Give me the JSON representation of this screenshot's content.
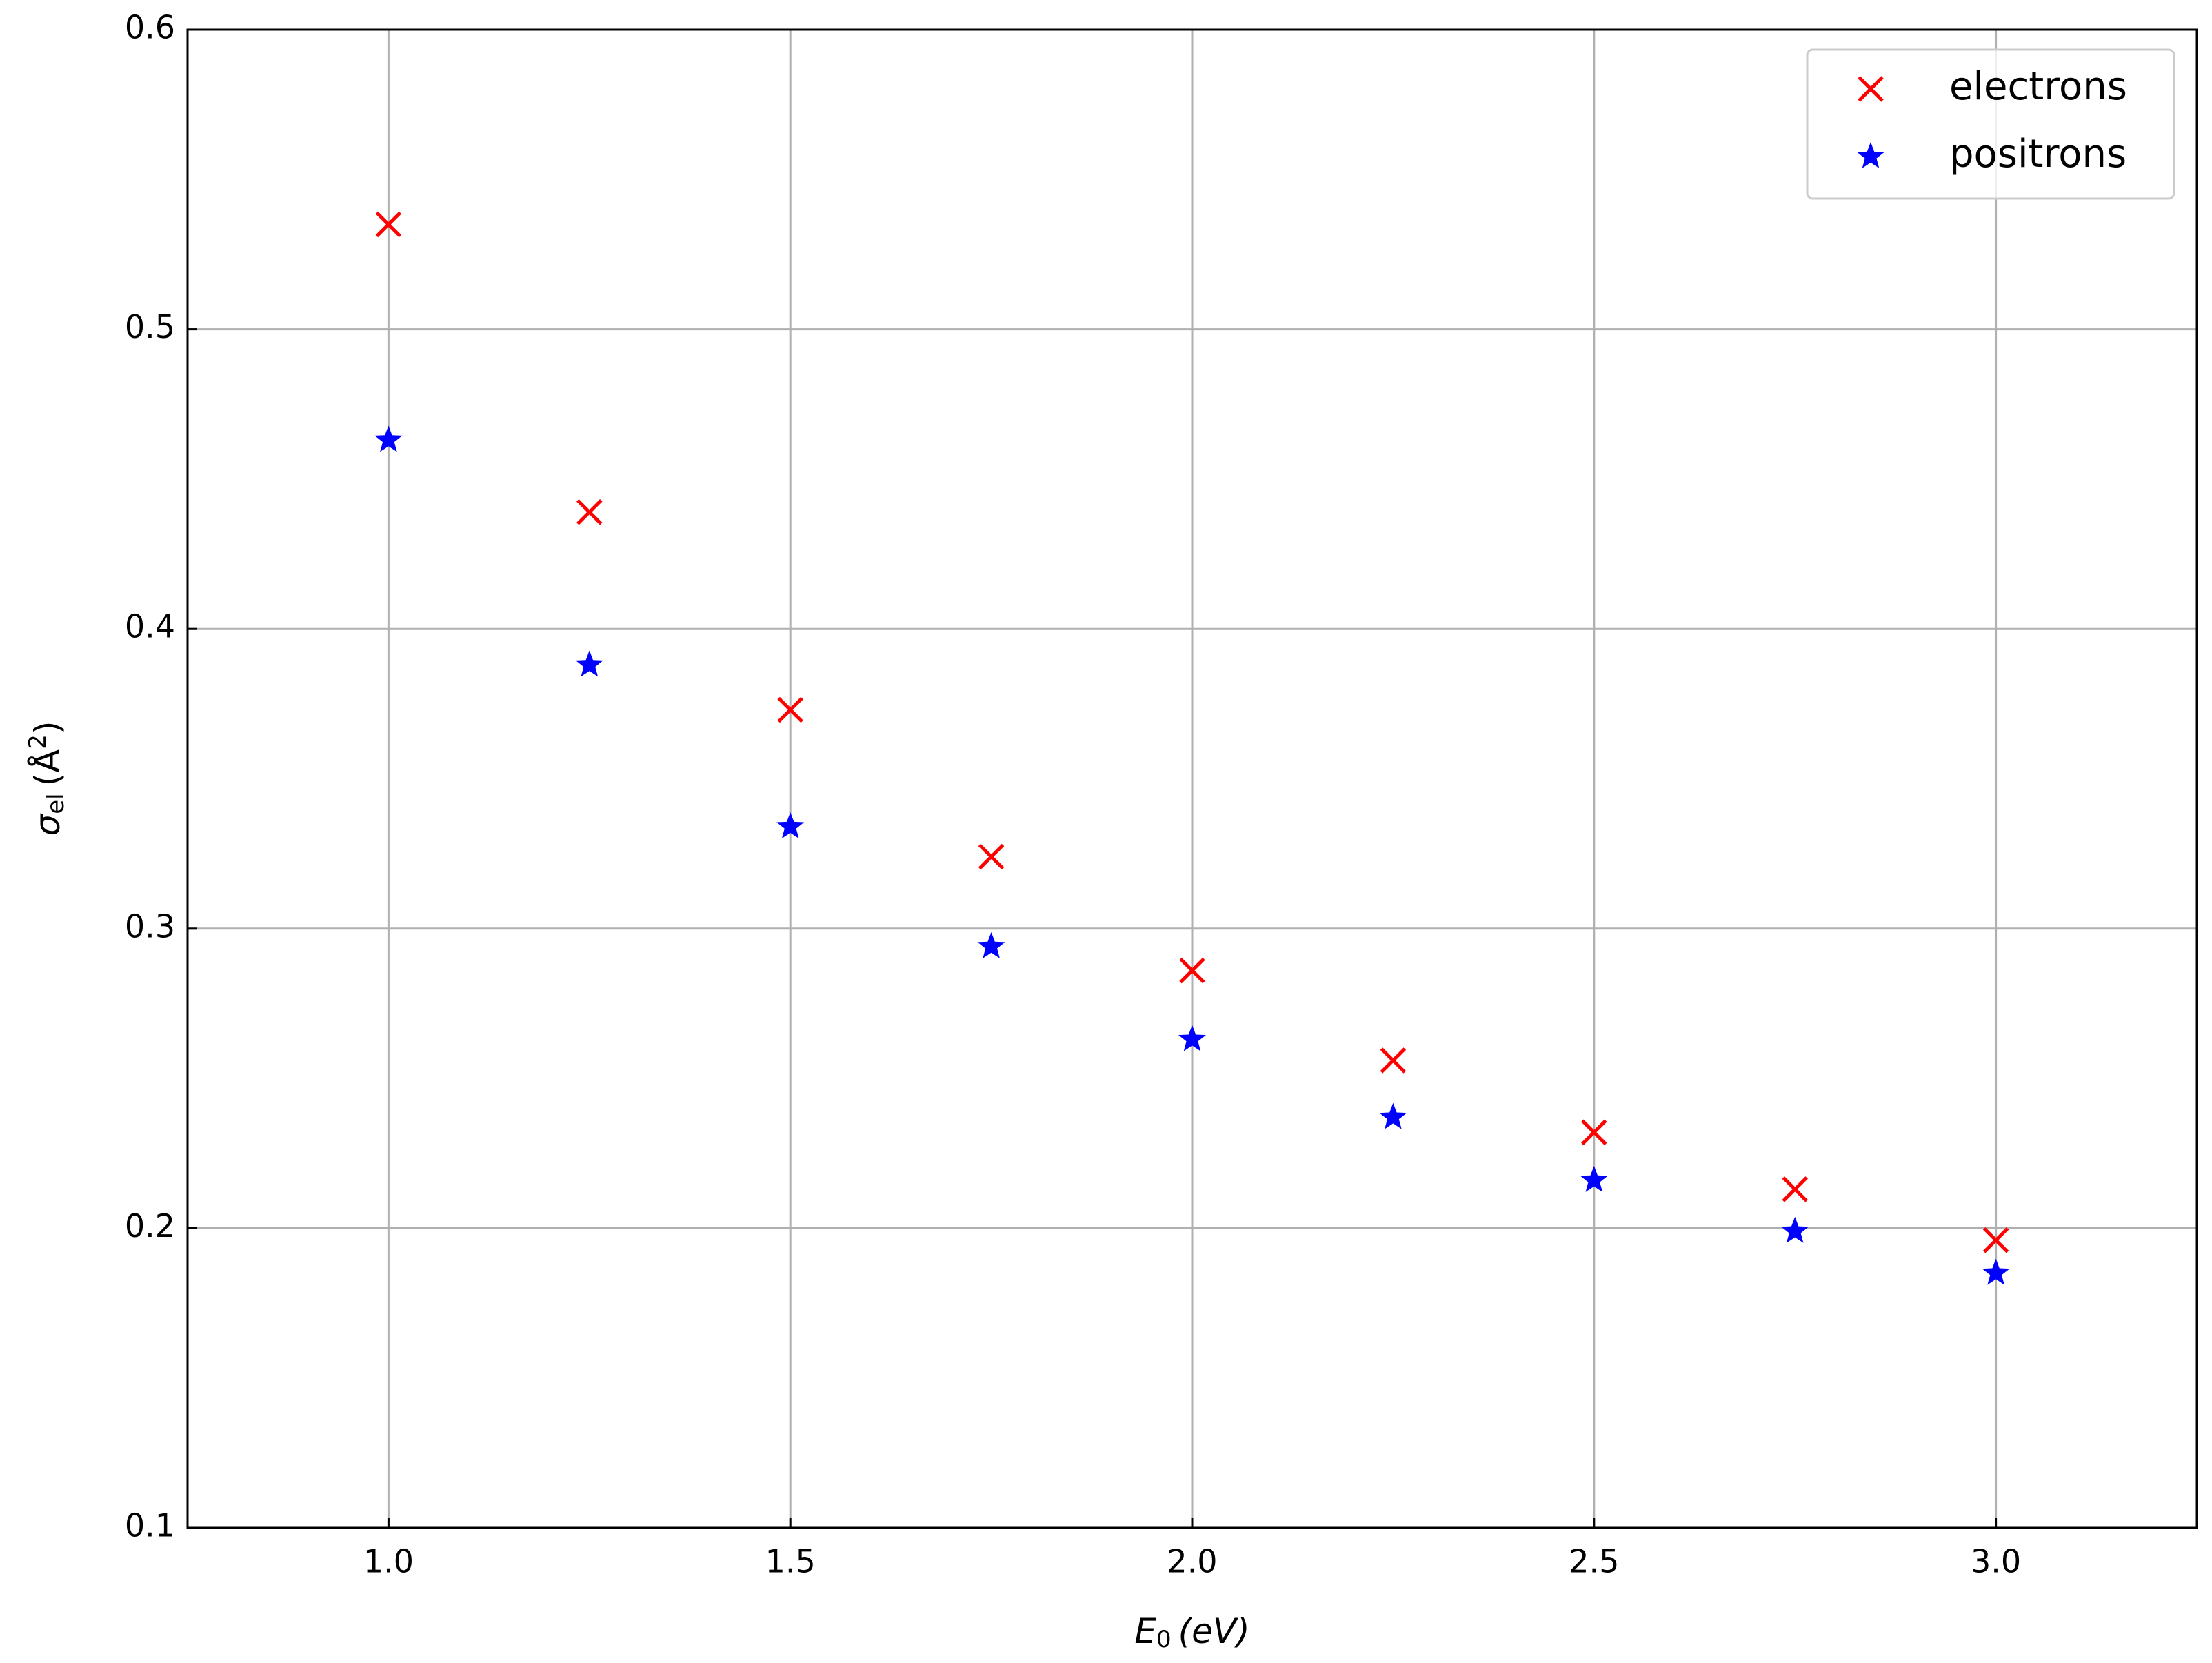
{
  "chart_data": {
    "type": "scatter",
    "x_label": {
      "main": "E",
      "sub": "0",
      "unit": "(eV)"
    },
    "y_label": {
      "main": "σ",
      "sub": "el",
      "unit": "(Å",
      "sup": "2",
      "close": ")"
    },
    "x": [
      1.0,
      1.25,
      1.5,
      1.75,
      2.0,
      2.25,
      2.5,
      2.75,
      3.0
    ],
    "series": [
      {
        "name": "electrons",
        "color": "#ff0000",
        "marker": "x",
        "values": [
          0.535,
          0.439,
          0.373,
          0.324,
          0.286,
          0.256,
          0.232,
          0.213,
          0.196
        ]
      },
      {
        "name": "positrons",
        "color": "#0000ff",
        "marker": "star",
        "values": [
          0.463,
          0.388,
          0.334,
          0.294,
          0.263,
          0.237,
          0.216,
          0.199,
          0.185
        ]
      }
    ],
    "xlim": [
      0.75,
      3.25
    ],
    "ylim": [
      0.1,
      0.6
    ],
    "xticks": [
      {
        "value": 1,
        "label": "1.0"
      },
      1.5,
      {
        "value": 2,
        "label": "2.0"
      },
      2.5,
      {
        "value": 3,
        "label": "3.0"
      }
    ],
    "yticks": [
      0.1,
      0.2,
      0.3,
      0.4,
      0.5,
      0.6
    ],
    "grid": true,
    "legend": "upper right"
  }
}
